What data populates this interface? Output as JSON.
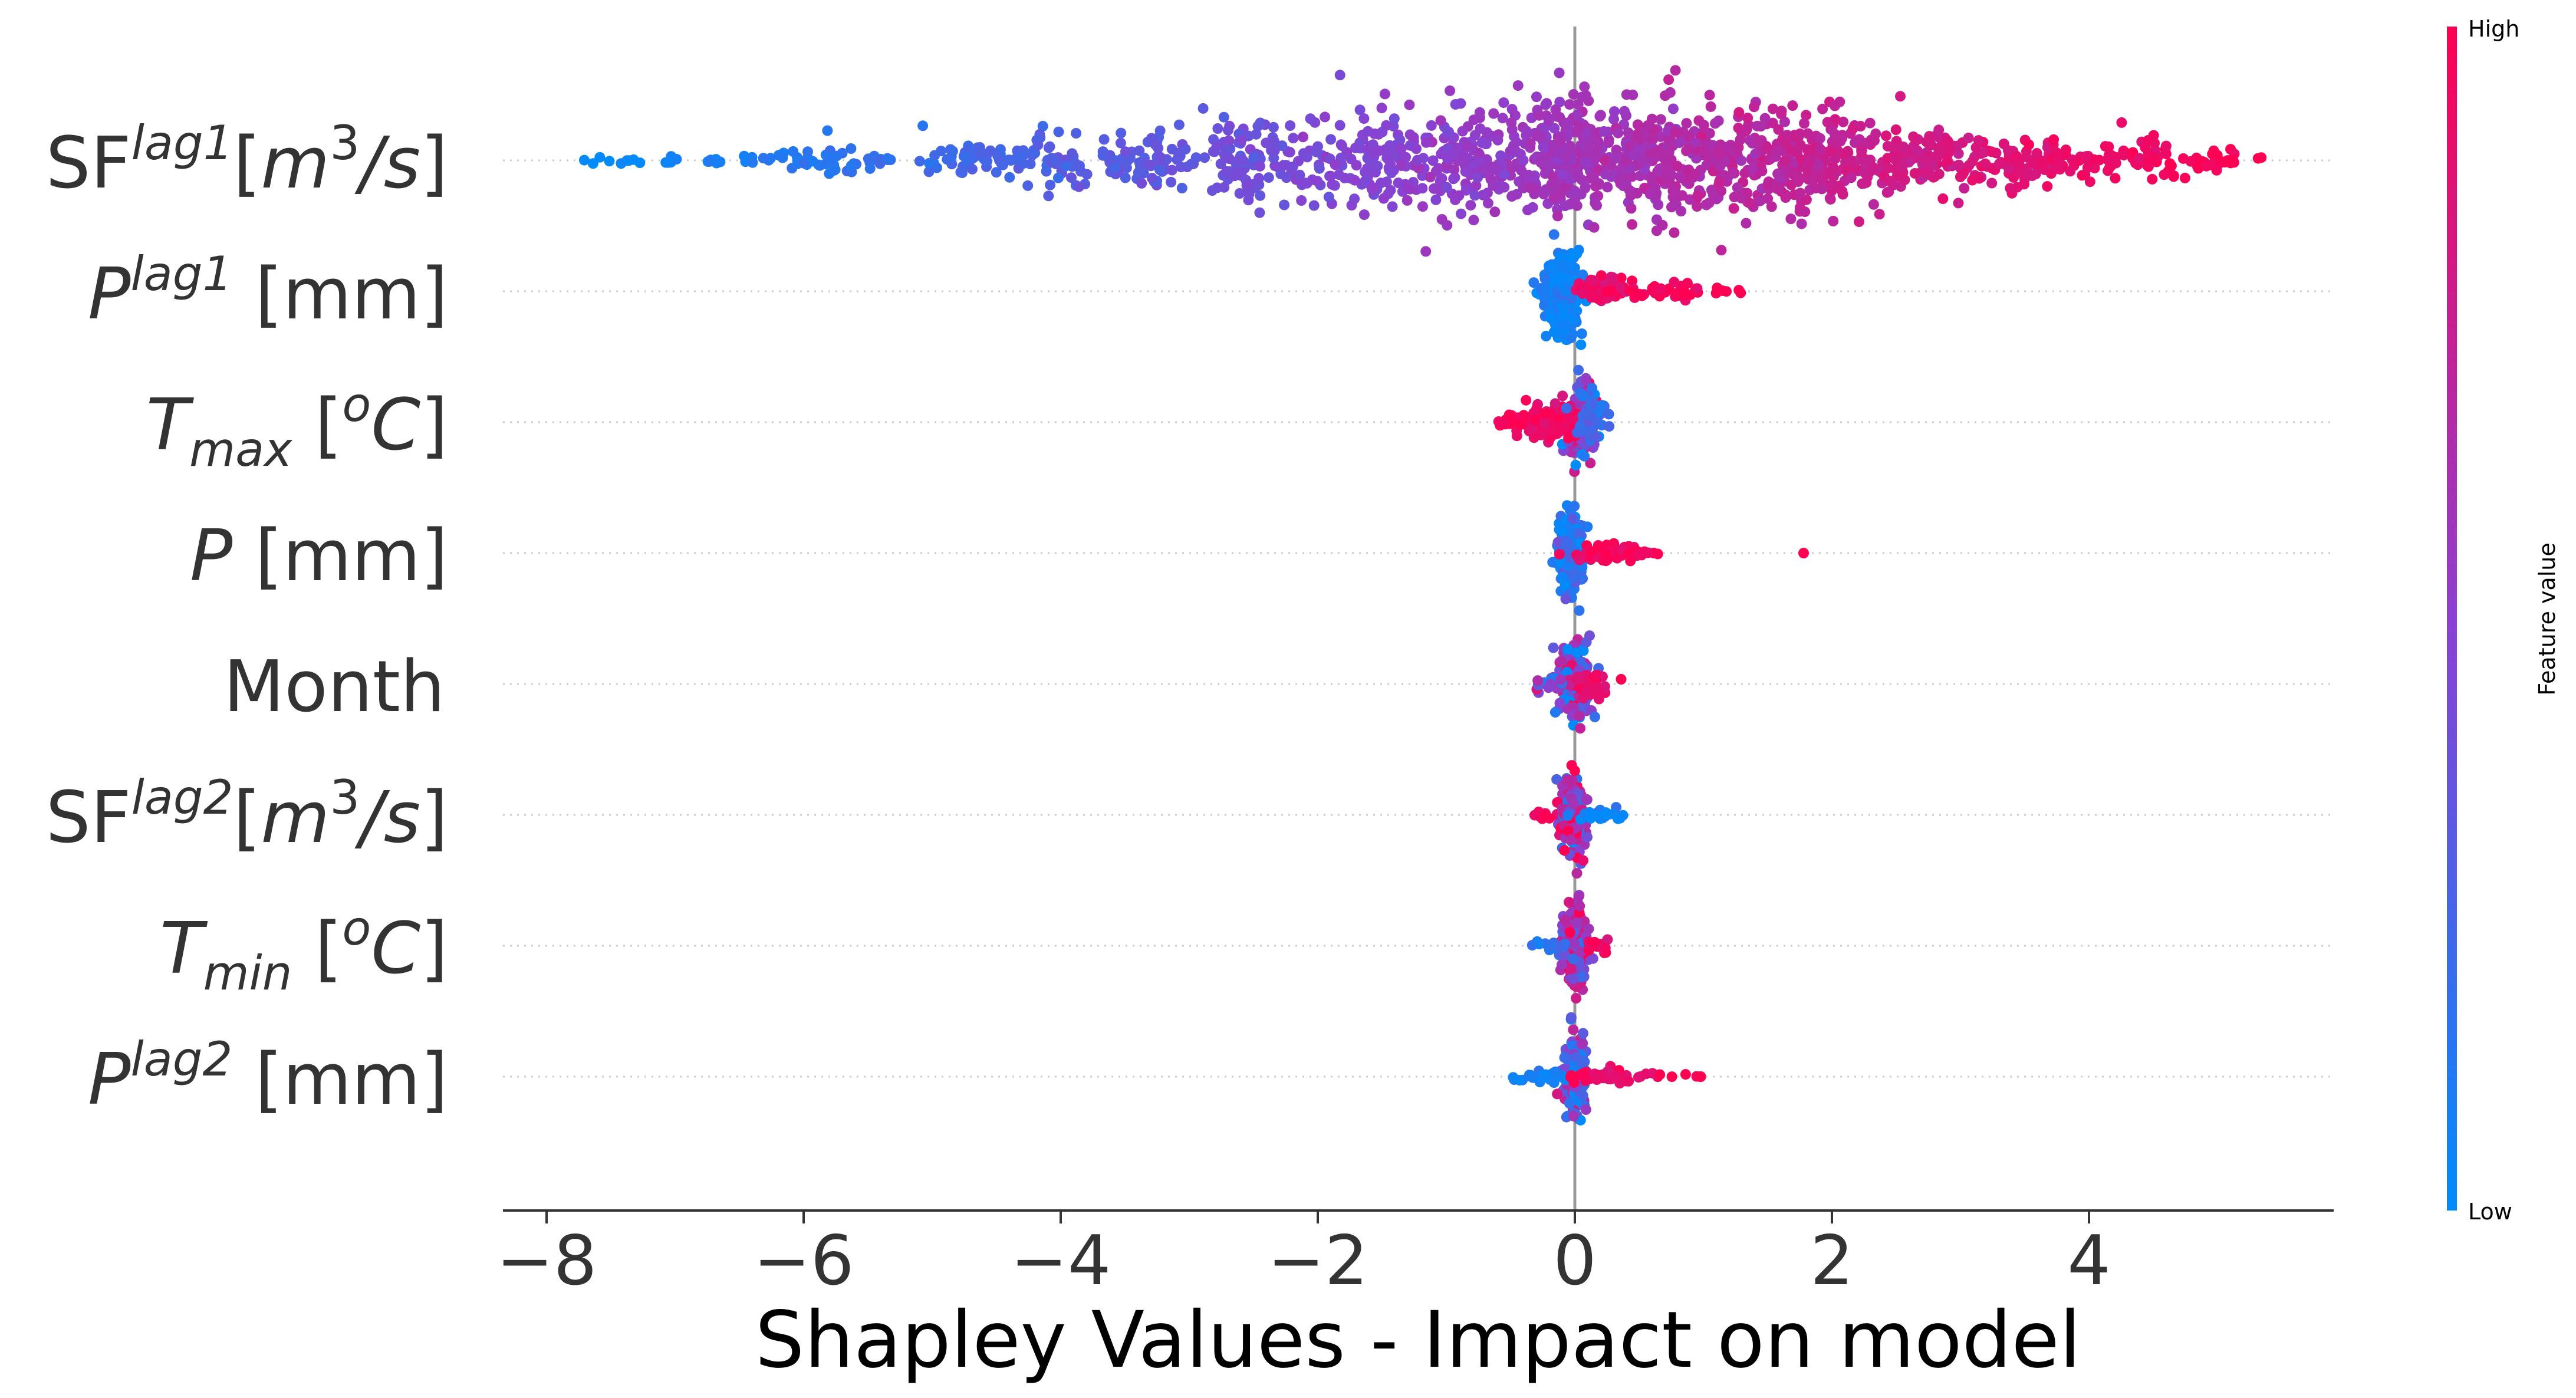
{
  "chart_data": {
    "type": "scatter",
    "subtype": "shap-beeswarm",
    "title": "",
    "xlabel": "Shapley Values - Impact on model",
    "ylabel": "",
    "xlim": [
      -8.5,
      5.9
    ],
    "xticks": [
      -8,
      -6,
      -4,
      -2,
      0,
      2,
      4
    ],
    "xtick_labels": [
      "−8",
      "−6",
      "−4",
      "−2",
      "0",
      "2",
      "4"
    ],
    "grid": false,
    "zero_line": true,
    "colorbar": {
      "label": "Feature value",
      "high_label": "High",
      "low_label": "Low",
      "low_color": "#008bfb",
      "mid_color": "#8c40d0",
      "high_color": "#ff0052",
      "placement": "right"
    },
    "features": [
      {
        "name": "SF",
        "sup": "lag1",
        "unit": "[m³/s]",
        "x_min": -7.7,
        "x_max": 5.25,
        "x_max_feature_value": "high",
        "x_min_feature_value": "low"
      },
      {
        "name": "P",
        "sup": "lag1",
        "unit": "[mm]",
        "x_min": -0.35,
        "x_max": 1.35,
        "x_max_feature_value": "high",
        "x_min_feature_value": "low"
      },
      {
        "name": "T",
        "sub": "max",
        "unit": "[°C]",
        "x_min": -0.6,
        "x_max": 0.35,
        "x_max_feature_value": "low",
        "x_min_feature_value": "high"
      },
      {
        "name": "P",
        "unit": "[mm]",
        "x_min": -0.2,
        "x_max": 1.8,
        "x_max_feature_value": "high",
        "x_min_feature_value": "low"
      },
      {
        "name": "Month",
        "unit": "",
        "x_min": -0.35,
        "x_max": 0.35,
        "x_max_feature_value": "high",
        "x_min_feature_value": "mixed"
      },
      {
        "name": "SF",
        "sup": "lag2",
        "unit": "[m³/s]",
        "x_min": -0.35,
        "x_max": 0.4,
        "x_max_feature_value": "low",
        "x_min_feature_value": "high"
      },
      {
        "name": "T",
        "sub": "min",
        "unit": "[°C]",
        "x_min": -0.35,
        "x_max": 0.3,
        "x_max_feature_value": "high",
        "x_min_feature_value": "low"
      },
      {
        "name": "P",
        "sup": "lag2",
        "unit": "[mm]",
        "x_min": -0.5,
        "x_max": 1.0,
        "x_max_feature_value": "high",
        "x_min_feature_value": "low"
      }
    ]
  },
  "labels": {
    "sf_lag1": {
      "pre": "SF",
      "sup": "lag1",
      "bracket_open": "[",
      "m": "m",
      "sup3": "3",
      "slash_s": "/s",
      "bracket_close": "]"
    },
    "p_lag1": {
      "p": "P",
      "sup": "lag1",
      "unit": " [mm]"
    },
    "t_max": {
      "t": "T",
      "sub": "max",
      "open": " [",
      "sup_o": "o",
      "c": "C",
      "close": "]"
    },
    "p": {
      "p": "P",
      "unit": " [mm]"
    },
    "month": {
      "text": "Month"
    },
    "sf_lag2": {
      "pre": "SF",
      "sup": "lag2",
      "bracket_open": "[",
      "m": "m",
      "sup3": "3",
      "slash_s": "/s",
      "bracket_close": "]"
    },
    "t_min": {
      "t": "T",
      "sub": "min",
      "open": " [",
      "sup_o": "o",
      "c": "C",
      "close": "]"
    },
    "p_lag2": {
      "p": "P",
      "sup": "lag2",
      "unit": " [mm]"
    }
  }
}
